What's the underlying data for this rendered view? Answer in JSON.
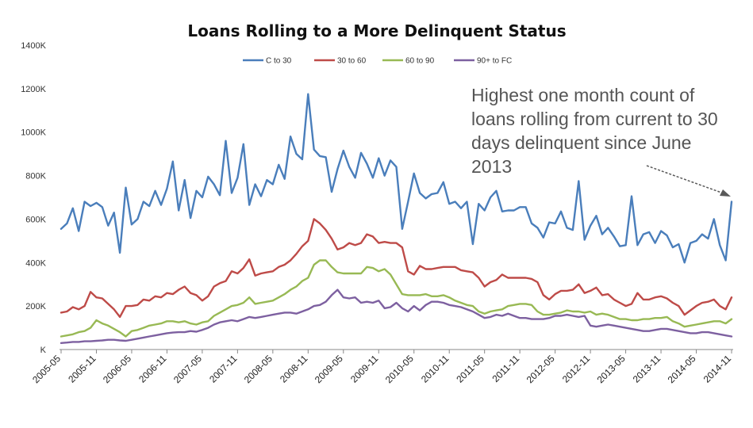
{
  "chart_data": {
    "type": "line",
    "title": "Loans Rolling to a More Delinquent Status",
    "xlabel": "",
    "ylabel": "",
    "ylim": [
      0,
      1400
    ],
    "y_unit": "K",
    "y_ticks": [
      "K",
      "200K",
      "400K",
      "600K",
      "800K",
      "1000K",
      "1200K",
      "1400K"
    ],
    "y_tick_values": [
      0,
      200,
      400,
      600,
      800,
      1000,
      1200,
      1400
    ],
    "grid": false,
    "legend_position": "top",
    "x_tick_labels": [
      "2005-05",
      "2005-11",
      "2006-05",
      "2006-11",
      "2007-05",
      "2007-11",
      "2008-05",
      "2008-11",
      "2009-05",
      "2009-11",
      "2010-05",
      "2010-11",
      "2011-05",
      "2011-11",
      "2012-05",
      "2012-11",
      "2013-05",
      "2013-11",
      "2014-05",
      "2014-11"
    ],
    "x_start": "2005-05",
    "x_end": "2014-11",
    "series": [
      {
        "name": "C to 30",
        "color": "#4a7ebb",
        "values": [
          555,
          580,
          650,
          545,
          680,
          660,
          675,
          655,
          570,
          630,
          445,
          745,
          575,
          600,
          680,
          660,
          730,
          665,
          740,
          865,
          640,
          780,
          605,
          730,
          700,
          795,
          760,
          710,
          960,
          720,
          790,
          945,
          665,
          760,
          705,
          780,
          760,
          850,
          785,
          980,
          900,
          875,
          1175,
          920,
          890,
          885,
          725,
          830,
          915,
          840,
          790,
          905,
          855,
          790,
          880,
          800,
          870,
          840,
          555,
          680,
          810,
          720,
          695,
          715,
          720,
          770,
          670,
          680,
          650,
          680,
          485,
          670,
          640,
          700,
          730,
          635,
          640,
          640,
          655,
          655,
          580,
          560,
          515,
          585,
          580,
          635,
          560,
          550,
          775,
          505,
          570,
          615,
          530,
          560,
          520,
          475,
          480,
          705,
          480,
          530,
          540,
          490,
          545,
          525,
          470,
          485,
          400,
          490,
          500,
          530,
          510,
          600,
          480,
          410,
          680
        ],
        "label": "C to 30"
      },
      {
        "name": "30 to 60",
        "color": "#be4b48",
        "values": [
          170,
          175,
          195,
          185,
          200,
          265,
          240,
          235,
          210,
          185,
          150,
          200,
          200,
          205,
          230,
          225,
          245,
          240,
          260,
          255,
          275,
          290,
          260,
          250,
          225,
          245,
          290,
          305,
          315,
          360,
          350,
          375,
          415,
          340,
          350,
          355,
          360,
          380,
          390,
          410,
          440,
          475,
          500,
          600,
          580,
          550,
          510,
          460,
          470,
          490,
          480,
          490,
          530,
          520,
          490,
          495,
          490,
          490,
          470,
          360,
          345,
          385,
          370,
          370,
          375,
          380,
          380,
          380,
          365,
          360,
          355,
          330,
          290,
          310,
          320,
          345,
          330,
          330,
          330,
          330,
          325,
          310,
          250,
          230,
          255,
          270,
          270,
          275,
          300,
          260,
          270,
          285,
          250,
          255,
          230,
          215,
          200,
          210,
          260,
          230,
          230,
          240,
          245,
          235,
          215,
          200,
          160,
          180,
          200,
          215,
          220,
          230,
          200,
          185,
          240
        ],
        "label": "30 to 60"
      },
      {
        "name": "60 to 90",
        "color": "#98b954",
        "values": [
          60,
          65,
          70,
          80,
          85,
          100,
          135,
          120,
          110,
          95,
          80,
          60,
          85,
          90,
          100,
          110,
          115,
          120,
          130,
          130,
          125,
          130,
          120,
          115,
          125,
          130,
          155,
          170,
          185,
          200,
          205,
          215,
          240,
          210,
          215,
          220,
          225,
          240,
          255,
          275,
          290,
          315,
          330,
          390,
          410,
          410,
          380,
          355,
          350,
          350,
          350,
          350,
          380,
          375,
          360,
          370,
          345,
          300,
          255,
          250,
          250,
          250,
          255,
          245,
          245,
          250,
          240,
          225,
          215,
          205,
          200,
          175,
          165,
          175,
          180,
          185,
          200,
          205,
          210,
          210,
          205,
          175,
          160,
          160,
          165,
          170,
          180,
          175,
          175,
          170,
          175,
          160,
          165,
          160,
          150,
          140,
          140,
          135,
          135,
          140,
          140,
          145,
          145,
          150,
          130,
          120,
          105,
          110,
          115,
          120,
          125,
          130,
          130,
          120,
          140
        ],
        "label": "60 to 90"
      },
      {
        "name": "90+ to FC",
        "color": "#7d60a0",
        "values": [
          30,
          32,
          35,
          35,
          38,
          38,
          40,
          42,
          45,
          45,
          42,
          40,
          45,
          50,
          55,
          60,
          65,
          70,
          75,
          78,
          80,
          80,
          85,
          82,
          90,
          100,
          115,
          125,
          130,
          135,
          130,
          140,
          150,
          145,
          150,
          155,
          160,
          165,
          170,
          170,
          165,
          175,
          185,
          200,
          205,
          220,
          250,
          275,
          240,
          235,
          240,
          215,
          220,
          215,
          225,
          190,
          195,
          215,
          190,
          175,
          200,
          180,
          205,
          220,
          220,
          215,
          205,
          200,
          195,
          185,
          175,
          160,
          145,
          150,
          160,
          155,
          165,
          155,
          145,
          145,
          140,
          140,
          140,
          145,
          155,
          155,
          160,
          155,
          150,
          155,
          110,
          105,
          110,
          115,
          110,
          105,
          100,
          95,
          90,
          85,
          85,
          90,
          95,
          95,
          90,
          85,
          80,
          75,
          75,
          80,
          80,
          75,
          70,
          65,
          60
        ],
        "label": "90+ to FC"
      }
    ],
    "annotation": {
      "line1": "Highest one month count of",
      "line2": "loans rolling from current to 30",
      "line3": "days delinquent since June",
      "line4": "2013"
    }
  }
}
